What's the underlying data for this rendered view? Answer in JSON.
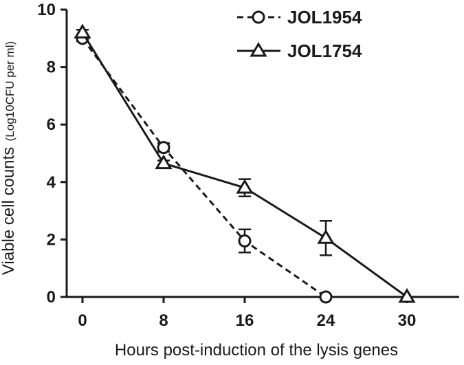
{
  "chart_data": {
    "type": "line",
    "title": "",
    "xlabel": "Hours post-induction of the lysis genes",
    "ylabel": "Viable cell counts",
    "ylabel_unit": "(Log10CFU per ml)",
    "x_ticks": [
      "0",
      "8",
      "16",
      "24",
      "30"
    ],
    "y_ticks": [
      "0",
      "2",
      "4",
      "6",
      "8",
      "10"
    ],
    "ylim": [
      0,
      10
    ],
    "grid": false,
    "legend_position": "top-right",
    "series": [
      {
        "name": "JOL1954",
        "marker": "circle",
        "line_style": "dashed",
        "color": "#1a1a1a",
        "x": [
          "0",
          "8",
          "16",
          "24"
        ],
        "y": [
          9.0,
          5.2,
          1.95,
          0.0
        ],
        "err": [
          0.1,
          0.15,
          0.4,
          0.0
        ]
      },
      {
        "name": "JOL1754",
        "marker": "triangle",
        "line_style": "solid",
        "color": "#1a1a1a",
        "x": [
          "0",
          "8",
          "16",
          "24",
          "30"
        ],
        "y": [
          9.2,
          4.65,
          3.8,
          2.05,
          0.0
        ],
        "err": [
          0.1,
          0.1,
          0.3,
          0.6,
          0.0
        ]
      }
    ]
  }
}
